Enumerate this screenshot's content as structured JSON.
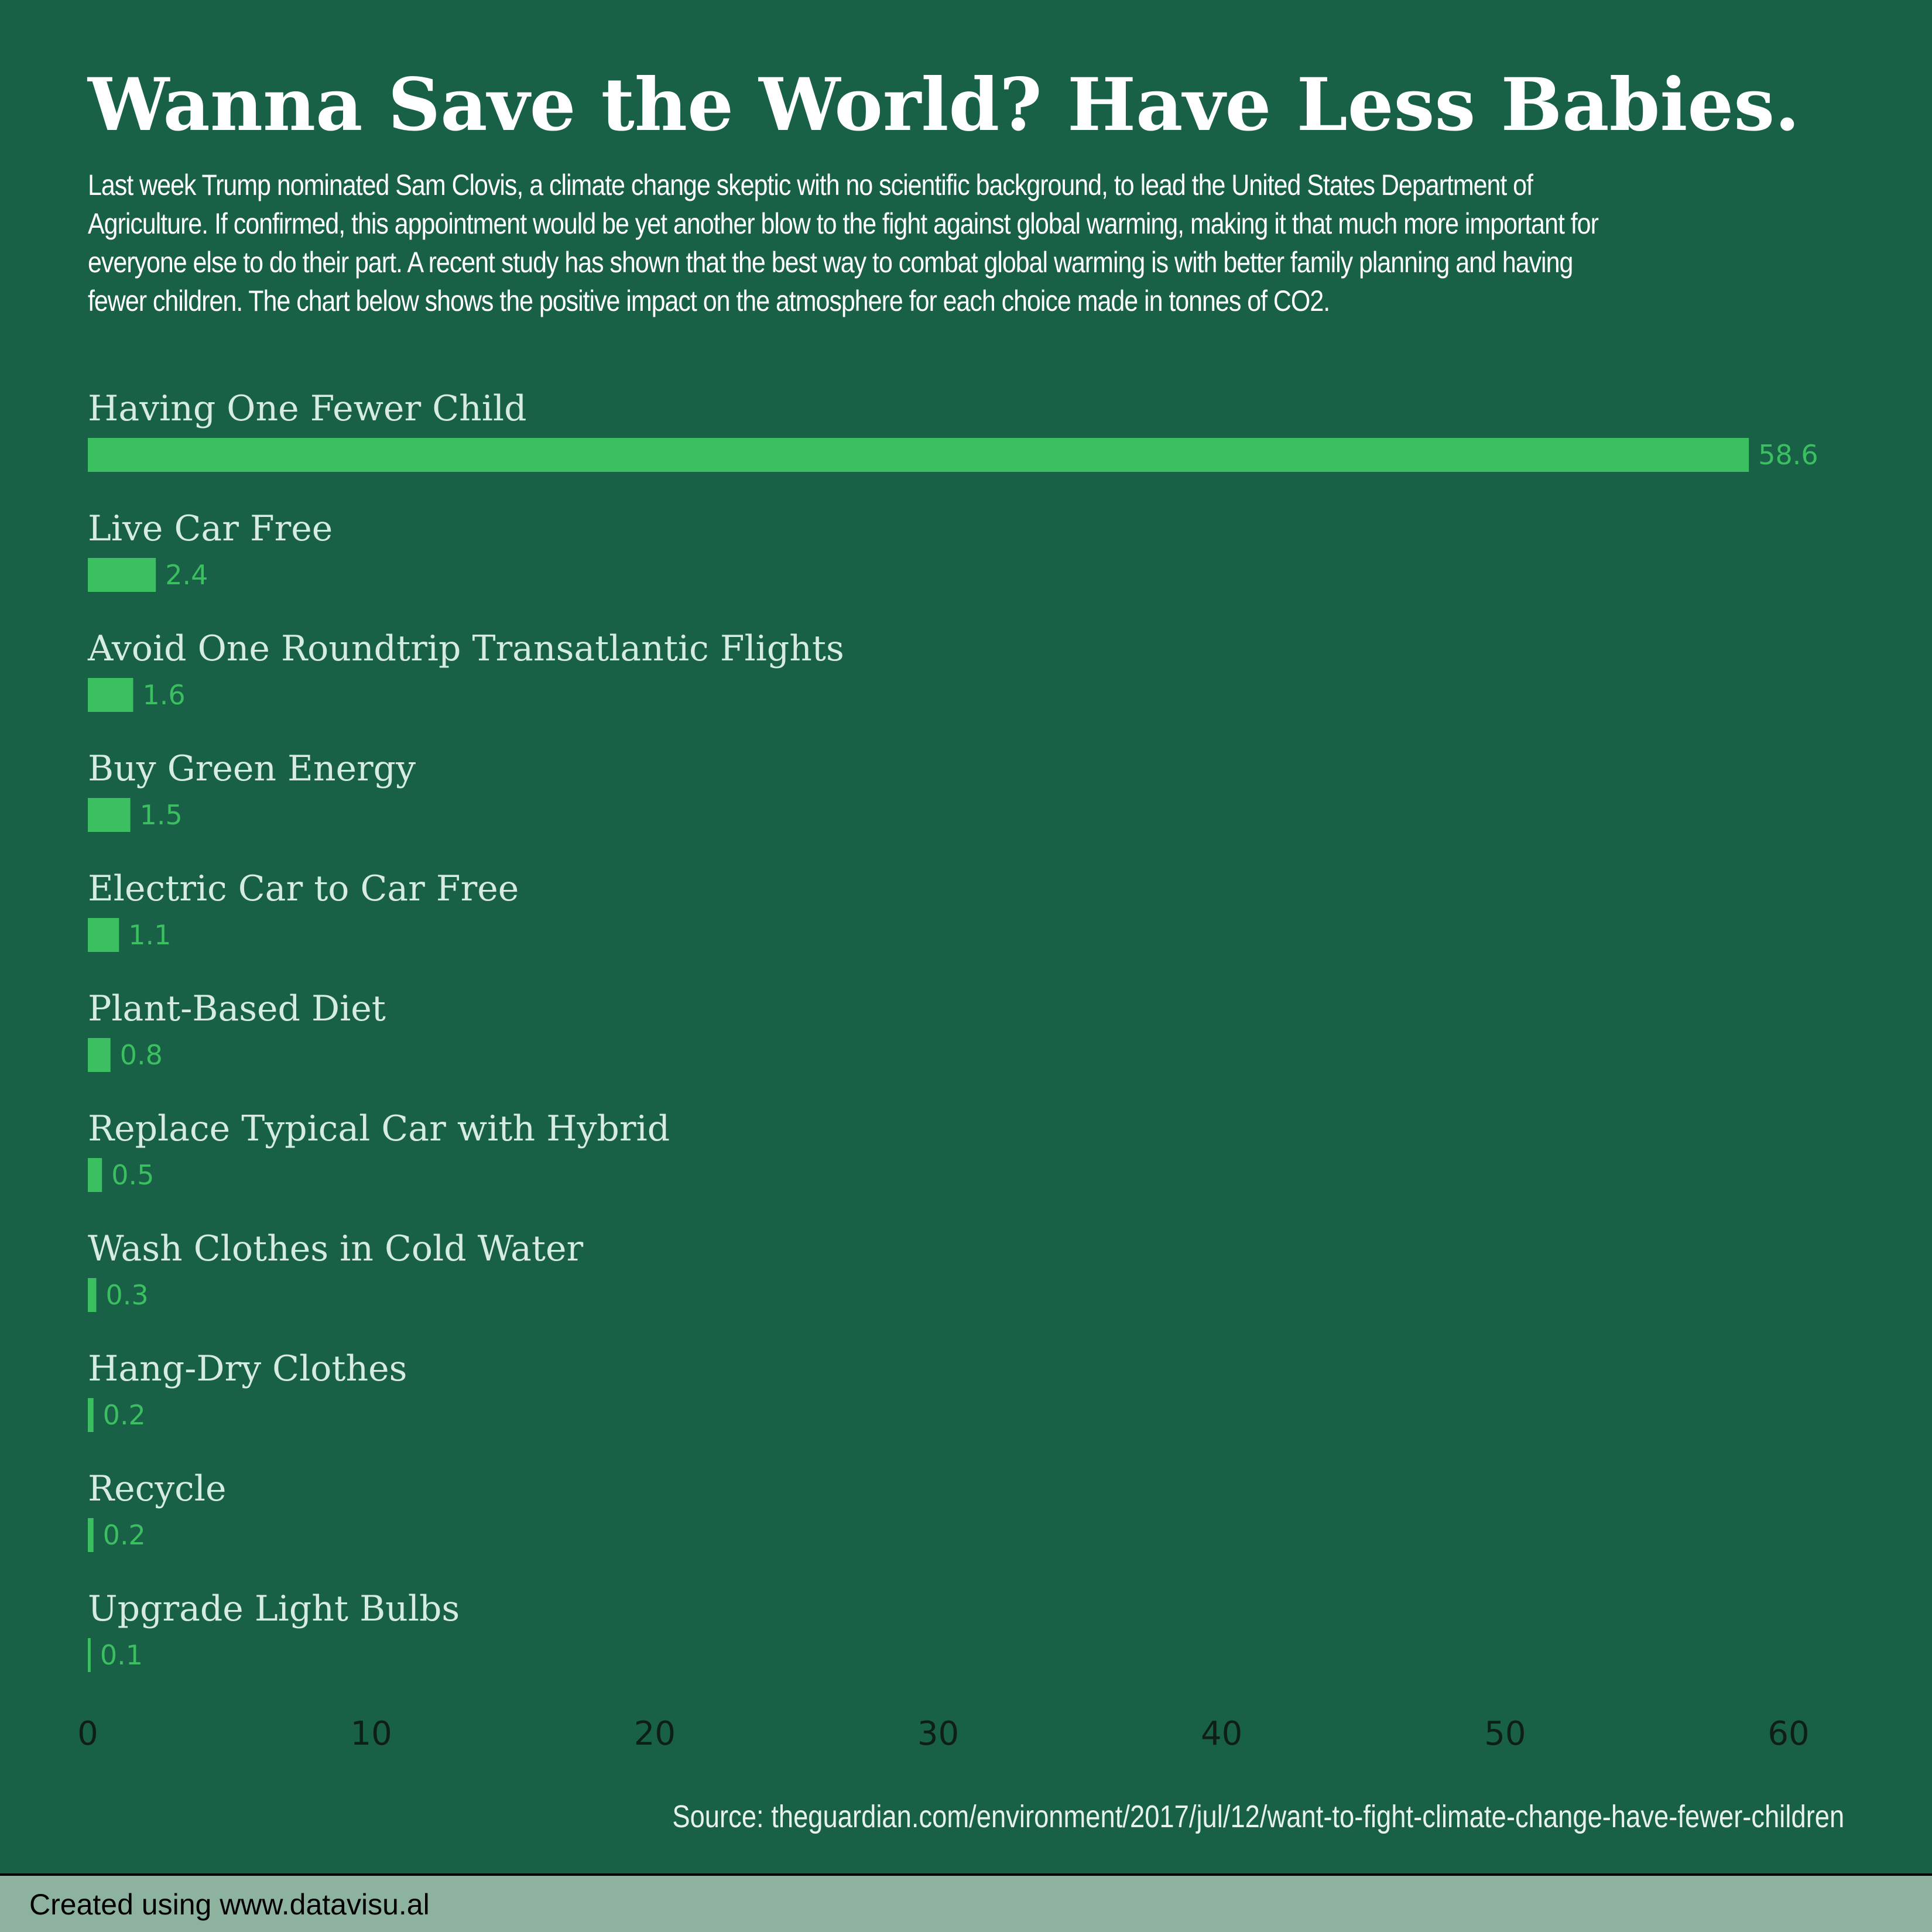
{
  "title": "Wanna Save the World? Have Less Babies.",
  "subtitle": "Last week Trump nominated Sam Clovis, a climate change skeptic with no scientific background, to lead the United States Department of Agriculture. If confirmed, this appointment would be yet another blow to the fight against global warming, making it that much more important for everyone else to do their part. A recent study has shown that the best way to combat global warming is with better family planning and having fewer children. The chart below shows the positive impact on the atmosphere for each choice made in tonnes of CO2.",
  "source": "Source: theguardian.com/environment/2017/jul/12/want-to-fight-climate-change-have-fewer-children",
  "footer": "Created using www.datavisu.al",
  "colors": {
    "background": "#186146",
    "bar": "#3bbf61",
    "footer": "#8db29f"
  },
  "chart_data": {
    "type": "bar",
    "orientation": "horizontal",
    "categories": [
      "Having One Fewer Child",
      "Live Car Free",
      "Avoid One Roundtrip Transatlantic Flights",
      "Buy Green Energy",
      "Electric Car to Car Free",
      "Plant-Based Diet",
      "Replace Typical Car with Hybrid",
      "Wash Clothes in Cold Water",
      "Hang-Dry Clothes",
      "Recycle",
      "Upgrade Light Bulbs"
    ],
    "values": [
      58.6,
      2.4,
      1.6,
      1.5,
      1.1,
      0.8,
      0.5,
      0.3,
      0.2,
      0.2,
      0.1
    ],
    "value_labels": [
      "58.6",
      "2.4",
      "1.6",
      "1.5",
      "1.1",
      "0.8",
      "0.5",
      "0.3",
      "0.2",
      "0.2",
      "0.1"
    ],
    "xlim": [
      0,
      60
    ],
    "xticks": [
      0,
      10,
      20,
      30,
      40,
      50,
      60
    ],
    "xtick_labels": [
      "0",
      "10",
      "20",
      "30",
      "40",
      "50",
      "60"
    ],
    "grid": false,
    "legend": "none"
  }
}
